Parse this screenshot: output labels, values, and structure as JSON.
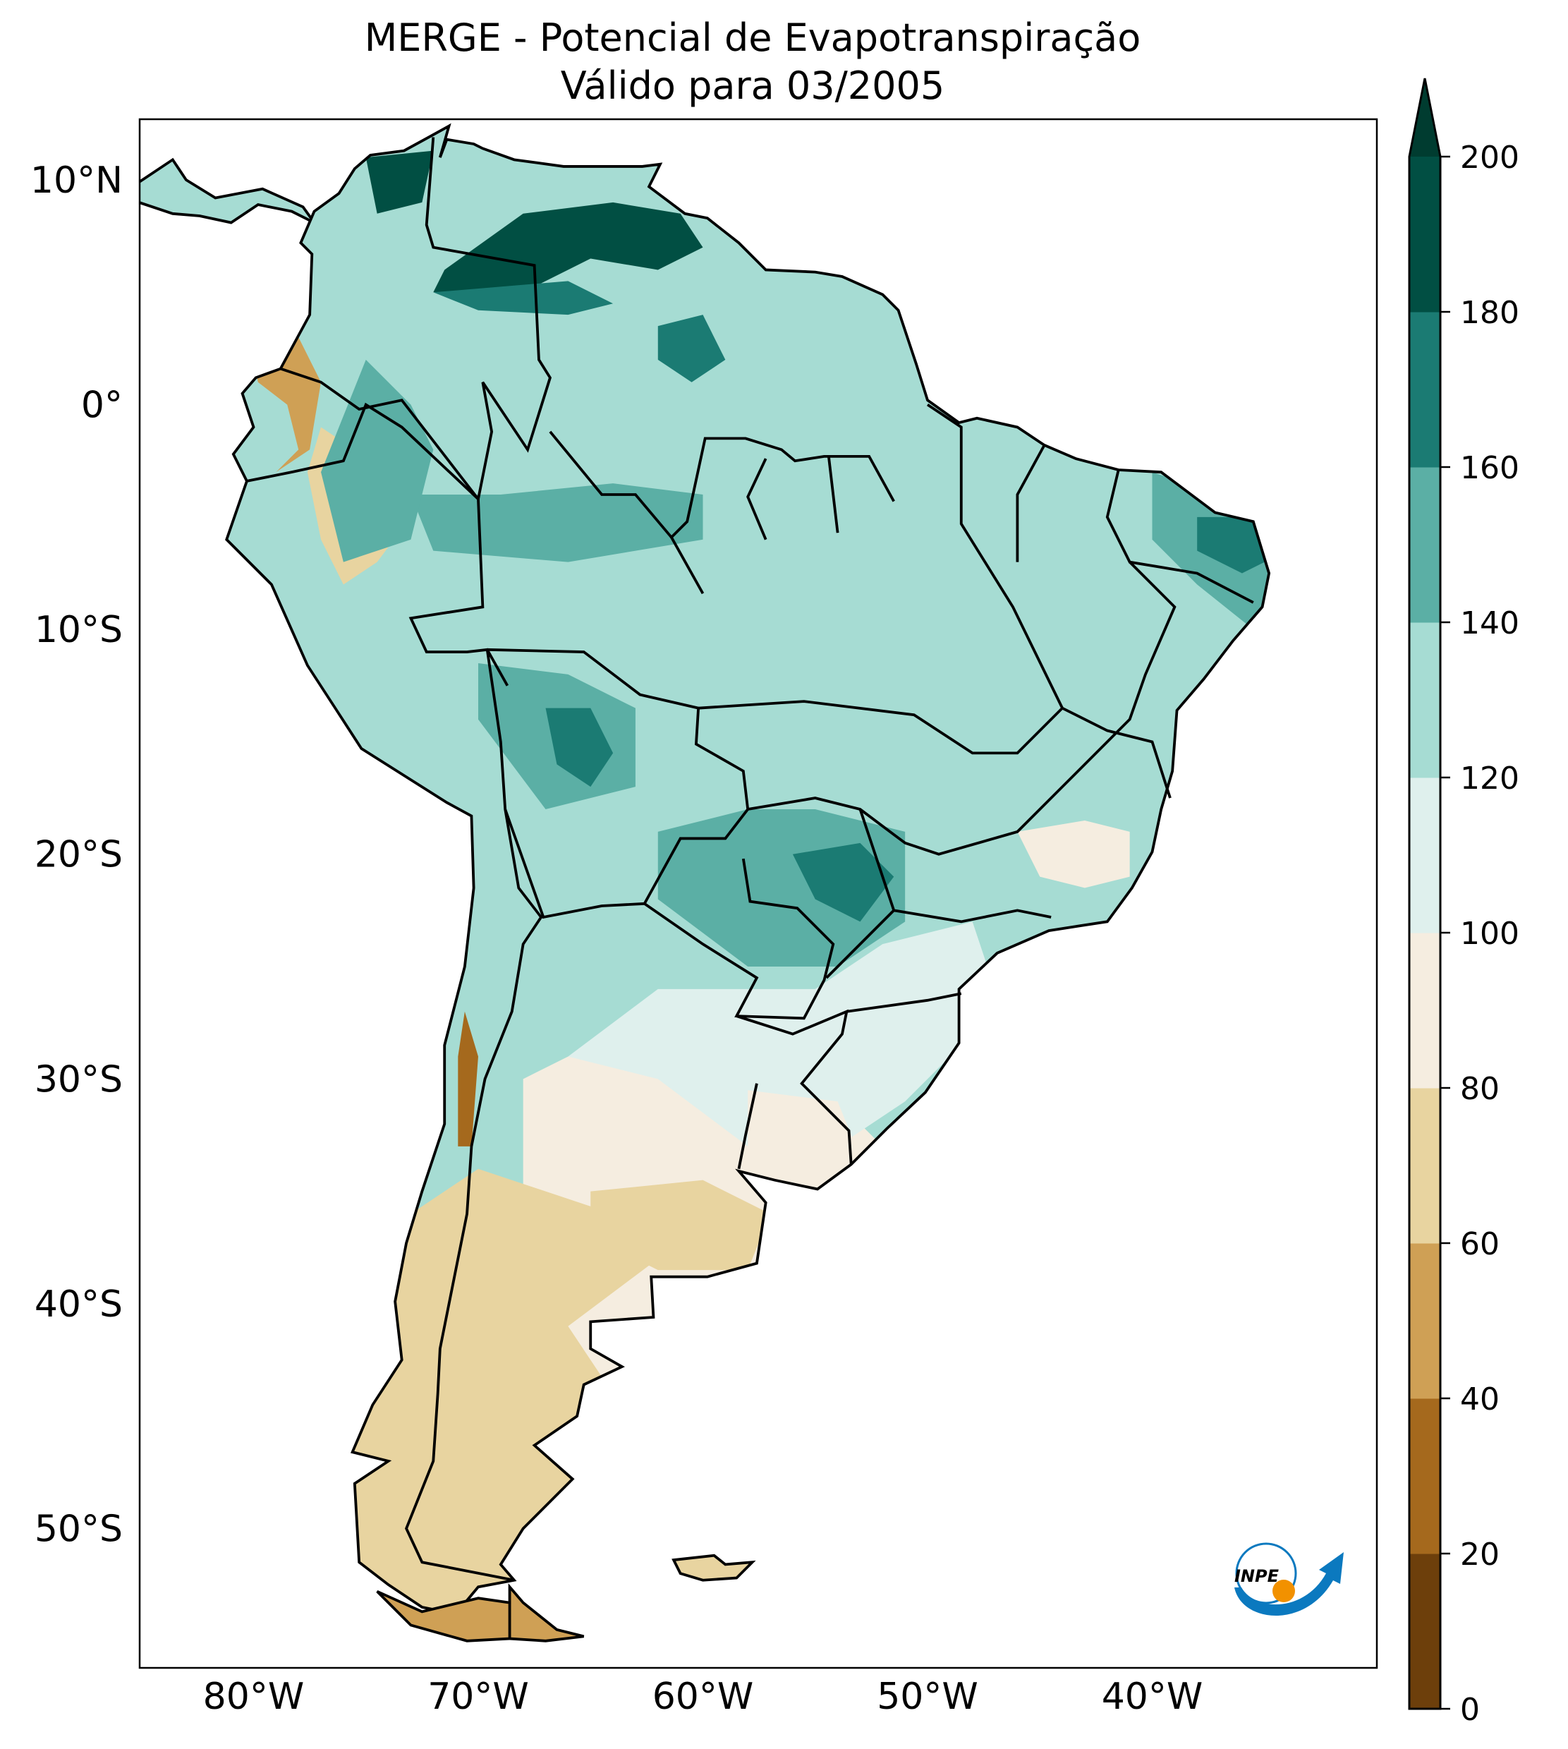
{
  "title": {
    "line1": "MERGE - Potencial de Evapotranspiração",
    "line2": "Válido para 03/2005"
  },
  "map": {
    "lon_range": [
      -85.07,
      -30
    ],
    "lat_range": [
      -56.2,
      12.7
    ],
    "x_ticks": [
      {
        "lon": -80,
        "label": "80°W"
      },
      {
        "lon": -70,
        "label": "70°W"
      },
      {
        "lon": -60,
        "label": "60°W"
      },
      {
        "lon": -50,
        "label": "50°W"
      },
      {
        "lon": -40,
        "label": "40°W"
      }
    ],
    "y_ticks": [
      {
        "lat": 10,
        "label": "10°N"
      },
      {
        "lat": 0,
        "label": "0°"
      },
      {
        "lat": -10,
        "label": "10°S"
      },
      {
        "lat": -20,
        "label": "20°S"
      },
      {
        "lat": -30,
        "label": "30°S"
      },
      {
        "lat": -40,
        "label": "40°S"
      },
      {
        "lat": -50,
        "label": "50°S"
      }
    ]
  },
  "colorbar": {
    "levels": [
      0,
      20,
      40,
      60,
      80,
      100,
      120,
      140,
      160,
      180,
      200
    ],
    "labels": [
      "0",
      "20",
      "40",
      "60",
      "80",
      "100",
      "120",
      "140",
      "160",
      "180",
      "200"
    ],
    "colors": [
      "#6d3f0b",
      "#a5691d",
      "#cfa055",
      "#e8d4a0",
      "#f5ede0",
      "#dff0ed",
      "#a6dcd3",
      "#5bafa5",
      "#1b7b73",
      "#014f43"
    ],
    "extend_color": "#003c30"
  },
  "logo": {
    "text": "INPE",
    "blue": "#0b79bf",
    "orange": "#f29100"
  }
}
